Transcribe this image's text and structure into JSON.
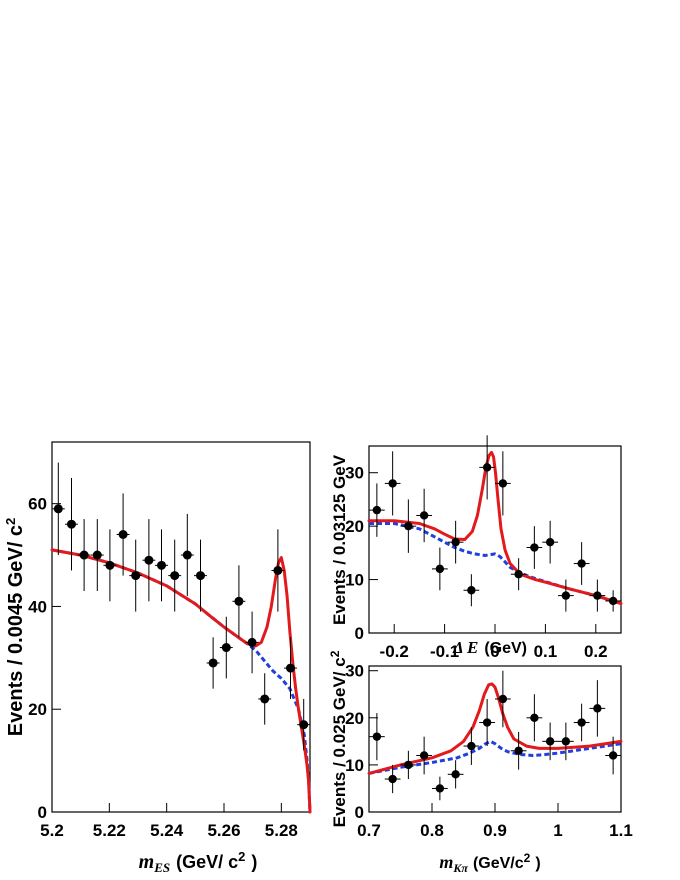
{
  "chart_data": [
    {
      "type": "scatter",
      "ylabel": "Events / 0.0045 GeV/ c",
      "ylabel_sup": "2",
      "xlabel_var": "m",
      "xlabel_sub": "ES",
      "xlabel_unit": "(GeV/ c",
      "xlabel_unit_sup": "2",
      "xlabel_close": ")",
      "xlim": [
        5.2,
        5.29
      ],
      "ylim": [
        0,
        72
      ],
      "xticks": [
        5.2,
        5.22,
        5.24,
        5.26,
        5.28
      ],
      "xtick_labels": [
        "5.2",
        "5.22",
        "5.24",
        "5.26",
        "5.28"
      ],
      "yticks": [
        0,
        20,
        40,
        60
      ],
      "ytick_labels": [
        "0",
        "20",
        "40",
        "60"
      ],
      "x_bin_half_width": 0.00225,
      "points": [
        {
          "x": 5.2022,
          "y": 59,
          "err": 9
        },
        {
          "x": 5.2068,
          "y": 56,
          "err": 9
        },
        {
          "x": 5.2112,
          "y": 50,
          "err": 7
        },
        {
          "x": 5.2158,
          "y": 50,
          "err": 7
        },
        {
          "x": 5.2202,
          "y": 48,
          "err": 7
        },
        {
          "x": 5.2248,
          "y": 54,
          "err": 8
        },
        {
          "x": 5.2292,
          "y": 46,
          "err": 7
        },
        {
          "x": 5.2338,
          "y": 49,
          "err": 8
        },
        {
          "x": 5.2382,
          "y": 48,
          "err": 7
        },
        {
          "x": 5.2428,
          "y": 46,
          "err": 7
        },
        {
          "x": 5.2472,
          "y": 50,
          "err": 8
        },
        {
          "x": 5.2518,
          "y": 46,
          "err": 7
        },
        {
          "x": 5.2562,
          "y": 29,
          "err": 5
        },
        {
          "x": 5.2608,
          "y": 32,
          "err": 6
        },
        {
          "x": 5.2652,
          "y": 41,
          "err": 7
        },
        {
          "x": 5.2698,
          "y": 33,
          "err": 6
        },
        {
          "x": 5.2742,
          "y": 22,
          "err": 5
        },
        {
          "x": 5.2788,
          "y": 47,
          "err": 8
        },
        {
          "x": 5.2832,
          "y": 28,
          "err": 6
        },
        {
          "x": 5.2878,
          "y": 17,
          "err": 5
        }
      ],
      "series": [
        {
          "style": "solid",
          "color": "#e31a1c",
          "x": [
            5.2,
            5.21,
            5.22,
            5.23,
            5.24,
            5.25,
            5.255,
            5.26,
            5.265,
            5.268,
            5.271,
            5.273,
            5.275,
            5.2765,
            5.278,
            5.279,
            5.28,
            5.281,
            5.282,
            5.283,
            5.284,
            5.285,
            5.286,
            5.287,
            5.288,
            5.289,
            5.2895,
            5.29
          ],
          "y": [
            51,
            50,
            48.5,
            46.5,
            44,
            40.5,
            38.2,
            36,
            34,
            32.8,
            32.3,
            33,
            36,
            40,
            45.5,
            48.5,
            49.5,
            47,
            42,
            35,
            29,
            24,
            20,
            16.5,
            13,
            9,
            6,
            0
          ]
        },
        {
          "style": "dashed",
          "color": "#1f3fe0",
          "x": [
            5.2,
            5.21,
            5.22,
            5.23,
            5.24,
            5.25,
            5.255,
            5.26,
            5.265,
            5.268,
            5.271,
            5.274,
            5.277,
            5.28,
            5.283,
            5.286,
            5.288,
            5.289,
            5.2895,
            5.29
          ],
          "y": [
            51,
            50,
            48.5,
            46.5,
            44,
            40.5,
            38.2,
            36,
            34,
            32.8,
            31.5,
            29.5,
            27.5,
            26,
            24,
            20,
            15,
            10,
            6,
            0
          ]
        }
      ]
    },
    {
      "type": "scatter",
      "ylabel": "Events / 0.03125 GeV",
      "xlabel_var": "Δ E",
      "xlabel_unit": "(GeV)",
      "xlim": [
        -0.25,
        0.25
      ],
      "ylim": [
        0,
        35
      ],
      "xticks": [
        -0.2,
        -0.1,
        0,
        0.1,
        0.2
      ],
      "xtick_labels": [
        "-0.2",
        "-0.1",
        "0",
        "0.1",
        "0.2"
      ],
      "yticks": [
        0,
        10,
        20,
        30
      ],
      "ytick_labels": [
        "0",
        "10",
        "20",
        "30"
      ],
      "x_bin_half_width": 0.0156,
      "points": [
        {
          "x": -0.2344,
          "y": 23,
          "err": 5
        },
        {
          "x": -0.2031,
          "y": 28,
          "err": 6
        },
        {
          "x": -0.1719,
          "y": 20,
          "err": 5
        },
        {
          "x": -0.1406,
          "y": 22,
          "err": 5
        },
        {
          "x": -0.1094,
          "y": 12,
          "err": 4
        },
        {
          "x": -0.0781,
          "y": 17,
          "err": 4
        },
        {
          "x": -0.0469,
          "y": 8,
          "err": 3
        },
        {
          "x": -0.0156,
          "y": 31,
          "err": 6
        },
        {
          "x": 0.0156,
          "y": 28,
          "err": 6
        },
        {
          "x": 0.0469,
          "y": 11,
          "err": 3
        },
        {
          "x": 0.0781,
          "y": 16,
          "err": 4
        },
        {
          "x": 0.1094,
          "y": 17,
          "err": 4
        },
        {
          "x": 0.1406,
          "y": 7,
          "err": 3
        },
        {
          "x": 0.1719,
          "y": 13,
          "err": 4
        },
        {
          "x": 0.2031,
          "y": 7,
          "err": 3
        },
        {
          "x": 0.2344,
          "y": 6,
          "err": 2
        }
      ],
      "series": [
        {
          "style": "solid",
          "color": "#e31a1c",
          "x": [
            -0.25,
            -0.2,
            -0.15,
            -0.12,
            -0.1,
            -0.08,
            -0.06,
            -0.045,
            -0.035,
            -0.025,
            -0.018,
            -0.012,
            -0.007,
            -0.003,
            0.001,
            0.006,
            0.012,
            0.02,
            0.03,
            0.05,
            0.08,
            0.1,
            0.15,
            0.2,
            0.25
          ],
          "y": [
            21,
            21,
            20.5,
            19.5,
            18.5,
            17.6,
            17.5,
            19,
            22,
            27,
            31,
            33.2,
            33.8,
            33,
            30,
            25,
            19.5,
            15.5,
            13,
            11,
            10,
            9.5,
            8.2,
            7,
            5.5
          ]
        },
        {
          "style": "dashed",
          "color": "#1f3fe0",
          "x": [
            -0.25,
            -0.2,
            -0.15,
            -0.12,
            -0.1,
            -0.08,
            -0.06,
            -0.04,
            -0.02,
            0,
            0.01,
            0.02,
            0.03,
            0.05,
            0.08,
            0.1,
            0.15,
            0.2,
            0.25
          ],
          "y": [
            20.5,
            20.5,
            19.5,
            18,
            17,
            16,
            15.3,
            14.8,
            14.5,
            14.8,
            14.3,
            13.3,
            12.3,
            11.2,
            10.2,
            9.6,
            8.2,
            7,
            5.5
          ]
        }
      ]
    },
    {
      "type": "scatter",
      "ylabel": "Events / 0.025 GeV/ c",
      "ylabel_sup": "2",
      "xlabel_var": "m",
      "xlabel_sub": "Kπ",
      "xlabel_unit": "(GeV/c",
      "xlabel_unit_sup": "2",
      "xlabel_close": ")",
      "xlim": [
        0.7,
        1.1
      ],
      "ylim": [
        0,
        31
      ],
      "xticks": [
        0.7,
        0.8,
        0.9,
        1.0,
        1.1
      ],
      "xtick_labels": [
        "0.7",
        "0.8",
        "0.9",
        "1",
        "1.1"
      ],
      "yticks": [
        0,
        10,
        20,
        30
      ],
      "ytick_labels": [
        "0",
        "10",
        "20",
        "30"
      ],
      "x_bin_half_width": 0.0125,
      "points": [
        {
          "x": 0.7125,
          "y": 16,
          "err": 5
        },
        {
          "x": 0.7375,
          "y": 7,
          "err": 3
        },
        {
          "x": 0.7625,
          "y": 10,
          "err": 3
        },
        {
          "x": 0.7875,
          "y": 12,
          "err": 4
        },
        {
          "x": 0.8125,
          "y": 5,
          "err": 2.5
        },
        {
          "x": 0.8375,
          "y": 8,
          "err": 3
        },
        {
          "x": 0.8625,
          "y": 14,
          "err": 4
        },
        {
          "x": 0.8875,
          "y": 19,
          "err": 5
        },
        {
          "x": 0.9125,
          "y": 24,
          "err": 6
        },
        {
          "x": 0.9375,
          "y": 13,
          "err": 4
        },
        {
          "x": 0.9625,
          "y": 20,
          "err": 5
        },
        {
          "x": 0.9875,
          "y": 15,
          "err": 4
        },
        {
          "x": 1.0125,
          "y": 15,
          "err": 4
        },
        {
          "x": 1.0375,
          "y": 19,
          "err": 4
        },
        {
          "x": 1.0625,
          "y": 22,
          "err": 6
        },
        {
          "x": 1.0875,
          "y": 12,
          "err": 4
        }
      ],
      "series": [
        {
          "style": "solid",
          "color": "#e31a1c",
          "x": [
            0.7,
            0.75,
            0.8,
            0.83,
            0.85,
            0.865,
            0.875,
            0.883,
            0.89,
            0.895,
            0.9,
            0.905,
            0.912,
            0.92,
            0.93,
            0.95,
            0.97,
            1.0,
            1.05,
            1.1
          ],
          "y": [
            8.2,
            10,
            11.5,
            13,
            15,
            18,
            21.5,
            25,
            27,
            27.2,
            26.5,
            24.5,
            21,
            18,
            15.5,
            14,
            13.5,
            13.5,
            14,
            15
          ]
        },
        {
          "style": "dashed",
          "color": "#1f3fe0",
          "x": [
            0.7,
            0.75,
            0.8,
            0.84,
            0.86,
            0.875,
            0.885,
            0.893,
            0.9,
            0.91,
            0.92,
            0.94,
            0.96,
            0.98,
            1.0,
            1.05,
            1.1
          ],
          "y": [
            8.2,
            9.5,
            10.5,
            11.5,
            12.5,
            13.5,
            14.5,
            15,
            14.5,
            13.5,
            12.8,
            12.2,
            12,
            12.2,
            12.5,
            13.5,
            14.5
          ]
        }
      ]
    }
  ]
}
